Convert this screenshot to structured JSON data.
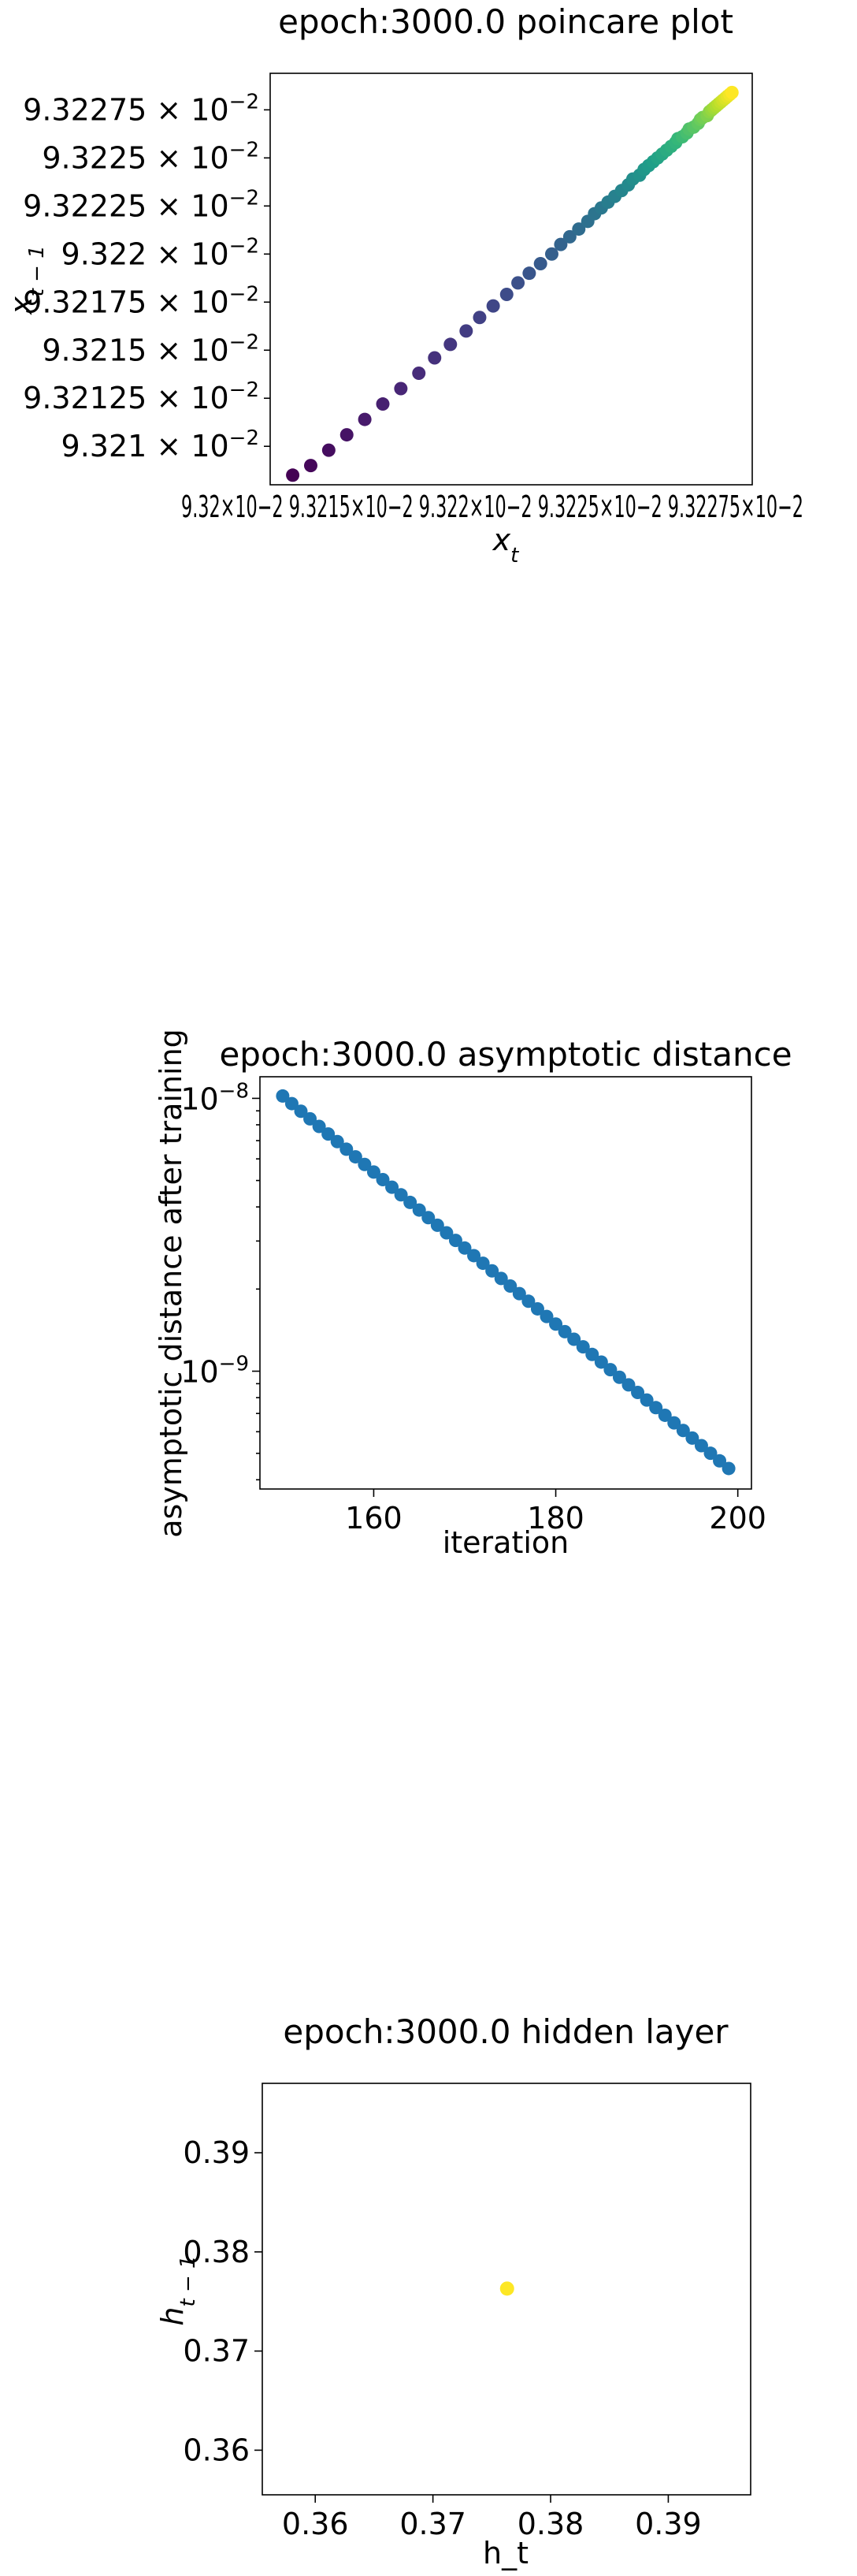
{
  "chart_data": [
    {
      "type": "scatter",
      "title": "epoch:3000.0 poincare plot",
      "xlabel": "x_t",
      "ylabel": "x_{t-1}",
      "colormap": "viridis",
      "y_ticks": [
        {
          "value": 0.09321,
          "mantissa": "9.321",
          "exp": "−2"
        },
        {
          "value": 0.0932125,
          "mantissa": "9.32125",
          "exp": "−2"
        },
        {
          "value": 0.093215,
          "mantissa": "9.3215",
          "exp": "−2"
        },
        {
          "value": 0.0932175,
          "mantissa": "9.32175",
          "exp": "−2"
        },
        {
          "value": 0.09322,
          "mantissa": "9.322",
          "exp": "−2"
        },
        {
          "value": 0.0932225,
          "mantissa": "9.32225",
          "exp": "−2"
        },
        {
          "value": 0.093225,
          "mantissa": "9.3225",
          "exp": "−2"
        },
        {
          "value": 0.0932275,
          "mantissa": "9.32275",
          "exp": "−2"
        }
      ],
      "x_tick_text": "9.32×10−2  9.3215×10−2  9.322×10−2  9.3225×10−2  9.32275×10−2",
      "x_range": [
        0.093208,
        0.0932294
      ],
      "y_range": [
        0.093208,
        0.0932294
      ],
      "points": [
        [
          0.093209,
          0.0932085
        ],
        [
          0.0932098,
          0.093209
        ],
        [
          0.0932106,
          0.0932098
        ],
        [
          0.0932114,
          0.0932106
        ],
        [
          0.0932122,
          0.0932114
        ],
        [
          0.093213,
          0.0932122
        ],
        [
          0.0932138,
          0.093213
        ],
        [
          0.0932146,
          0.0932138
        ],
        [
          0.0932153,
          0.0932146
        ],
        [
          0.093216,
          0.0932153
        ],
        [
          0.0932167,
          0.093216
        ],
        [
          0.0932173,
          0.0932167
        ],
        [
          0.0932179,
          0.0932173
        ],
        [
          0.0932185,
          0.0932179
        ],
        [
          0.093219,
          0.0932185
        ],
        [
          0.0932195,
          0.093219
        ],
        [
          0.09322,
          0.0932195
        ],
        [
          0.0932205,
          0.09322
        ],
        [
          0.0932209,
          0.0932205
        ],
        [
          0.0932213,
          0.0932209
        ],
        [
          0.0932217,
          0.0932213
        ],
        [
          0.0932221,
          0.0932217
        ],
        [
          0.0932224,
          0.0932221
        ],
        [
          0.0932227,
          0.0932224
        ],
        [
          0.093223,
          0.0932227
        ],
        [
          0.0932233,
          0.093223
        ],
        [
          0.0932236,
          0.0932233
        ],
        [
          0.0932239,
          0.0932236
        ],
        [
          0.0932241,
          0.0932239
        ],
        [
          0.0932244,
          0.0932241
        ],
        [
          0.0932246,
          0.0932244
        ],
        [
          0.0932248,
          0.0932246
        ],
        [
          0.093225,
          0.0932248
        ],
        [
          0.0932252,
          0.093225
        ],
        [
          0.0932254,
          0.0932252
        ],
        [
          0.0932256,
          0.0932254
        ],
        [
          0.0932258,
          0.0932256
        ],
        [
          0.093226,
          0.0932258
        ],
        [
          0.0932261,
          0.093226
        ],
        [
          0.0932263,
          0.0932261
        ],
        [
          0.0932265,
          0.0932263
        ],
        [
          0.0932266,
          0.0932265
        ],
        [
          0.0932268,
          0.0932266
        ],
        [
          0.093227,
          0.0932268
        ],
        [
          0.0932271,
          0.093227
        ],
        [
          0.0932272,
          0.0932271
        ],
        [
          0.0932274,
          0.0932272
        ],
        [
          0.0932275,
          0.0932274
        ],
        [
          0.0932276,
          0.0932275
        ],
        [
          0.0932277,
          0.0932276
        ],
        [
          0.0932278,
          0.0932277
        ],
        [
          0.0932279,
          0.0932278
        ],
        [
          0.093228,
          0.0932279
        ],
        [
          0.0932281,
          0.093228
        ],
        [
          0.0932282,
          0.0932281
        ],
        [
          0.0932283,
          0.0932282
        ],
        [
          0.0932284,
          0.0932283
        ],
        [
          0.0932285,
          0.0932284
        ]
      ]
    },
    {
      "type": "scatter",
      "title": "epoch:3000.0 asymptotic distance",
      "xlabel": "iteration",
      "ylabel": "asymptotic distance after training",
      "yscale": "log",
      "color": "#1f77b4",
      "x_ticks": [
        {
          "value": 160,
          "label": "160"
        },
        {
          "value": 180,
          "label": "180"
        },
        {
          "value": 200,
          "label": "200"
        }
      ],
      "y_ticks": [
        {
          "value": 1e-09,
          "base": "10",
          "exp": "−9"
        },
        {
          "value": 1e-08,
          "base": "10",
          "exp": "−8"
        }
      ],
      "x_range": [
        147.5,
        201.5
      ],
      "y_range": [
        3.7e-10,
        1.2e-08
      ],
      "points_start_iter": 150,
      "points_end_iter": 199,
      "start_value": 1.02e-08,
      "end_value": 4.4e-10
    },
    {
      "type": "scatter",
      "title": "epoch:3000.0 hidden layer",
      "xlabel": "h_t",
      "ylabel": "h_{t-1}",
      "color": "#fde725",
      "x_ticks": [
        {
          "value": 0.36,
          "label": "0.36"
        },
        {
          "value": 0.37,
          "label": "0.37"
        },
        {
          "value": 0.38,
          "label": "0.38"
        },
        {
          "value": 0.39,
          "label": "0.39"
        }
      ],
      "y_ticks": [
        {
          "value": 0.36,
          "label": "0.36"
        },
        {
          "value": 0.37,
          "label": "0.37"
        },
        {
          "value": 0.38,
          "label": "0.38"
        },
        {
          "value": 0.39,
          "label": "0.39"
        }
      ],
      "x_range": [
        0.3555,
        0.397
      ],
      "y_range": [
        0.3555,
        0.397
      ],
      "points": [
        [
          0.3763,
          0.3763
        ]
      ]
    }
  ]
}
